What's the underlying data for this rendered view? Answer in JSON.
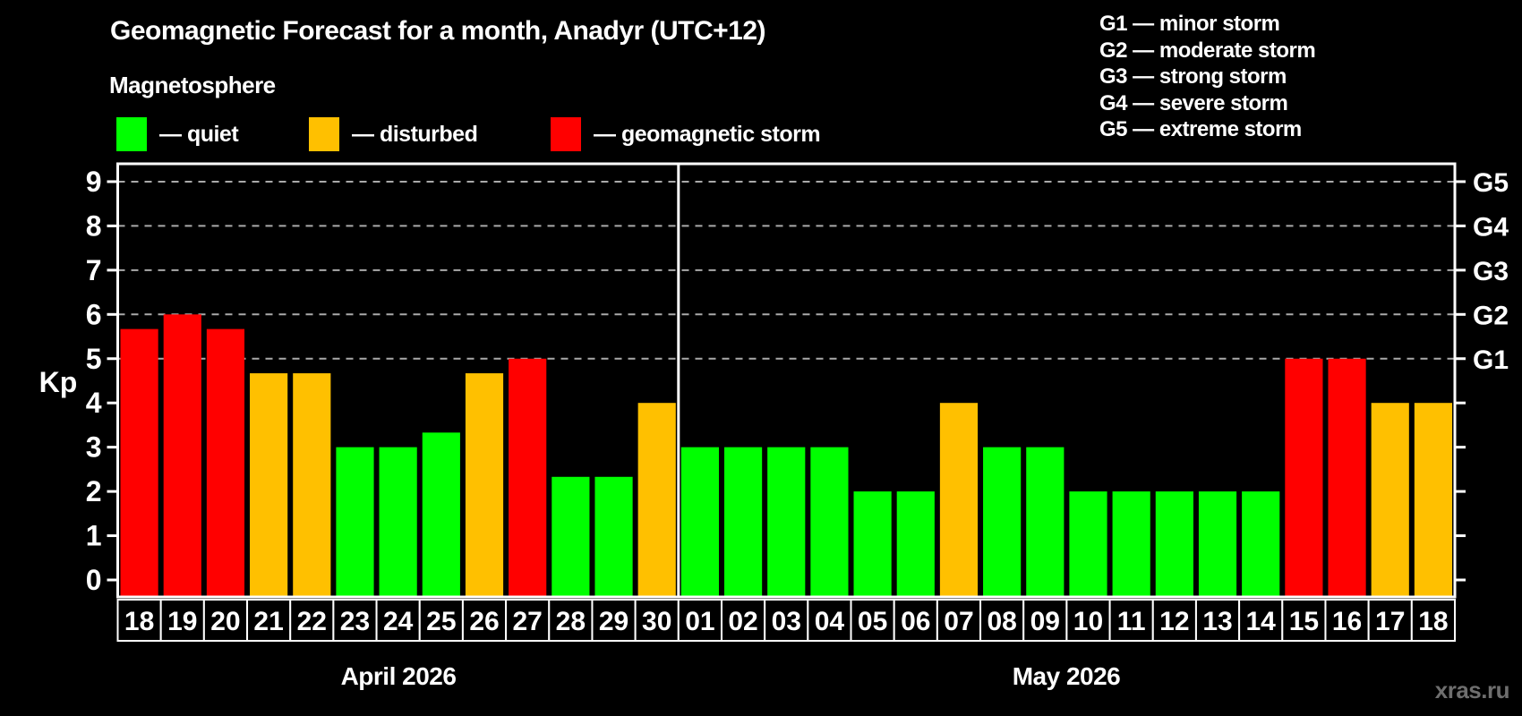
{
  "title": "Geomagnetic Forecast for a month, Anadyr (UTC+12)",
  "subtitle": "Magnetosphere",
  "legend": {
    "items": [
      {
        "key": "quiet",
        "label": "— quiet",
        "color": "#00ff00"
      },
      {
        "key": "disturbed",
        "label": "— disturbed",
        "color": "#ffc000"
      },
      {
        "key": "storm",
        "label": "— geomagnetic storm",
        "color": "#ff0000"
      }
    ]
  },
  "storm_scale": [
    "G1 — minor storm",
    "G2 — moderate storm",
    "G3 — strong storm",
    "G4 — severe storm",
    "G5 — extreme storm"
  ],
  "watermark": "xras.ru",
  "chart_data": {
    "type": "bar",
    "ylabel": "Kp",
    "ylim": [
      -0.4,
      9.4
    ],
    "y_ticks": [
      0,
      1,
      2,
      3,
      4,
      5,
      6,
      7,
      8,
      9
    ],
    "gridlines_at": [
      5,
      6,
      7,
      8,
      9
    ],
    "grid_color": "#aaaaaa",
    "right_axis_labels": [
      {
        "value": 5,
        "label": "G1"
      },
      {
        "value": 6,
        "label": "G2"
      },
      {
        "value": 7,
        "label": "G3"
      },
      {
        "value": 8,
        "label": "G4"
      },
      {
        "value": 9,
        "label": "G5"
      }
    ],
    "color_thresholds": {
      "disturbed_min": 4,
      "storm_min": 5
    },
    "legend_position": "top-left",
    "months": [
      {
        "label": "April 2026",
        "days": [
          "18",
          "19",
          "20",
          "21",
          "22",
          "23",
          "24",
          "25",
          "26",
          "27",
          "28",
          "29",
          "30"
        ],
        "values": [
          5.67,
          6,
          5.67,
          4.67,
          4.67,
          3,
          3,
          3.33,
          4.67,
          5,
          2.33,
          2.33,
          4
        ]
      },
      {
        "label": "May 2026",
        "days": [
          "01",
          "02",
          "03",
          "04",
          "05",
          "06",
          "07",
          "08",
          "09",
          "10",
          "11",
          "12",
          "13",
          "14",
          "15",
          "16",
          "17",
          "18"
        ],
        "values": [
          3,
          3,
          3,
          3,
          2,
          2,
          4,
          3,
          3,
          2,
          2,
          2,
          2,
          2,
          5,
          5,
          4,
          4
        ]
      }
    ]
  }
}
